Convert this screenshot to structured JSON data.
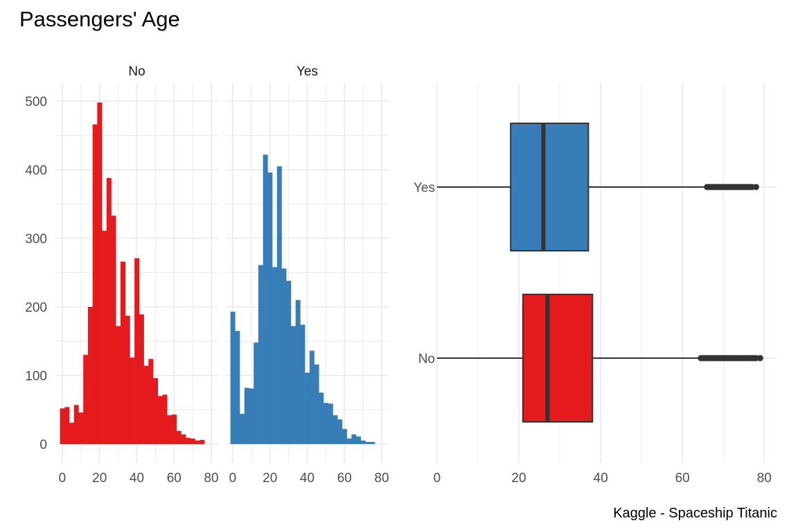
{
  "title": "Passengers' Age",
  "caption": "Kaggle - Spaceship Titanic",
  "colors": {
    "No": "#E41A1C",
    "Yes": "#377EB8",
    "grid": "#ebebeb",
    "line": "#333333"
  },
  "chart_data": [
    {
      "type": "bar",
      "subtype": "histogram",
      "facets": [
        "No",
        "Yes"
      ],
      "bin_width": 2.5,
      "x_ticks": [
        "0",
        "20",
        "40",
        "60",
        "80"
      ],
      "y_ticks": [
        "0",
        "100",
        "200",
        "300",
        "400",
        "500"
      ],
      "xlim": [
        -3.7,
        83.7
      ],
      "ylim": [
        0,
        500
      ],
      "grid": true,
      "series": [
        {
          "name": "No",
          "bin_centers": [
            0,
            2.5,
            5,
            7.5,
            10,
            12.5,
            15,
            17.5,
            20,
            22.5,
            25,
            27.5,
            30,
            32.5,
            35,
            37.5,
            40,
            42.5,
            45,
            47.5,
            50,
            52.5,
            55,
            57.5,
            60,
            62.5,
            65,
            67.5,
            70,
            72.5,
            75,
            77.5,
            80
          ],
          "values": [
            52,
            54,
            31,
            57,
            46,
            130,
            200,
            466,
            498,
            311,
            388,
            333,
            172,
            266,
            187,
            126,
            271,
            189,
            114,
            124,
            96,
            70,
            72,
            42,
            43,
            19,
            14,
            9,
            8,
            5,
            6,
            0,
            0
          ]
        },
        {
          "name": "Yes",
          "bin_centers": [
            0,
            2.5,
            5,
            7.5,
            10,
            12.5,
            15,
            17.5,
            20,
            22.5,
            25,
            27.5,
            30,
            32.5,
            35,
            37.5,
            40,
            42.5,
            45,
            47.5,
            50,
            52.5,
            55,
            57.5,
            60,
            62.5,
            65,
            67.5,
            70,
            72.5,
            75,
            77.5,
            80
          ],
          "values": [
            193,
            165,
            44,
            82,
            81,
            148,
            261,
            422,
            396,
            258,
            405,
            256,
            238,
            172,
            210,
            174,
            104,
            136,
            116,
            75,
            60,
            59,
            42,
            36,
            22,
            8,
            14,
            11,
            5,
            3,
            3,
            0,
            0
          ]
        }
      ]
    },
    {
      "type": "box",
      "categories": [
        "Yes",
        "No"
      ],
      "x_ticks": [
        "0",
        "20",
        "40",
        "60",
        "80"
      ],
      "xlim": [
        -1,
        83
      ],
      "grid": true,
      "series": [
        {
          "name": "Yes",
          "min": 0,
          "q1": 18,
          "median": 26,
          "q3": 37,
          "whisker_high": 65.5,
          "outliers": [
            66,
            66.5,
            67,
            67.5,
            68,
            68.5,
            69,
            69.5,
            70,
            70.5,
            71,
            71.5,
            72,
            72.5,
            73,
            73.5,
            74,
            74.5,
            75,
            75.5,
            76,
            76.5,
            77,
            78
          ]
        },
        {
          "name": "No",
          "min": 0,
          "q1": 21,
          "median": 27,
          "q3": 38,
          "whisker_high": 64,
          "outliers": [
            64.5,
            65,
            65.5,
            66,
            66.5,
            67,
            67.5,
            68,
            68.5,
            69,
            69.5,
            70,
            70.5,
            71,
            71.5,
            72,
            72.5,
            73,
            73.5,
            74,
            74.5,
            75,
            75.5,
            76,
            76.5,
            77,
            77.5,
            78,
            79
          ]
        }
      ]
    }
  ]
}
